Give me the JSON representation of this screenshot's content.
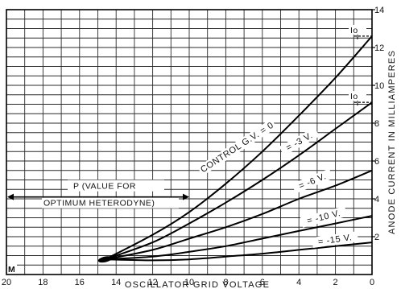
{
  "chart_data": {
    "type": "line",
    "xlabel": "OSCILLATOR GRID VOLTAGE",
    "ylabel": "ANODE CURRENT IN MILLIAMPERES",
    "xlim": [
      20,
      0
    ],
    "ylim": [
      0,
      14
    ],
    "x_ticks": [
      20,
      18,
      16,
      14,
      12,
      10,
      8,
      6,
      4,
      2,
      0
    ],
    "y_ticks": [
      2,
      4,
      6,
      8,
      10,
      12,
      14
    ],
    "grid": true,
    "series": [
      {
        "name": "CONTROL G.V. = 0",
        "x": [
          14.6,
          12,
          10,
          8,
          6,
          4,
          2,
          0
        ],
        "y": [
          0.8,
          2.1,
          3.3,
          4.8,
          6.5,
          8.4,
          10.4,
          12.6
        ]
      },
      {
        "name": "= -3 V.",
        "x": [
          14.6,
          12,
          10,
          8,
          6,
          4,
          2,
          0
        ],
        "y": [
          0.8,
          1.7,
          2.7,
          3.8,
          5.0,
          6.3,
          7.7,
          9.1
        ]
      },
      {
        "name": "= -6 V.",
        "x": [
          14.6,
          12,
          10,
          8,
          6,
          4,
          2,
          0
        ],
        "y": [
          0.8,
          1.3,
          1.9,
          2.5,
          3.2,
          4.0,
          4.7,
          5.5
        ]
      },
      {
        "name": "= -10 V.",
        "x": [
          14.6,
          12,
          10,
          8,
          6,
          4,
          2,
          0
        ],
        "y": [
          0.8,
          0.95,
          1.2,
          1.5,
          1.9,
          2.3,
          2.7,
          3.1
        ]
      },
      {
        "name": "= -15 V.",
        "x": [
          14.6,
          12,
          10,
          8,
          6,
          4,
          2,
          0
        ],
        "y": [
          0.8,
          0.75,
          0.8,
          0.95,
          1.1,
          1.3,
          1.5,
          1.7
        ]
      }
    ],
    "annotations": {
      "p_label": "P (VALUE FOR",
      "p_label_line2": "OPTIMUM HETERODYNE)",
      "io_label": "Io",
      "m_label": "M",
      "p_range": [
        20,
        10
      ],
      "p_level": 4.1,
      "io_levels": [
        12.6,
        9.1
      ]
    }
  }
}
